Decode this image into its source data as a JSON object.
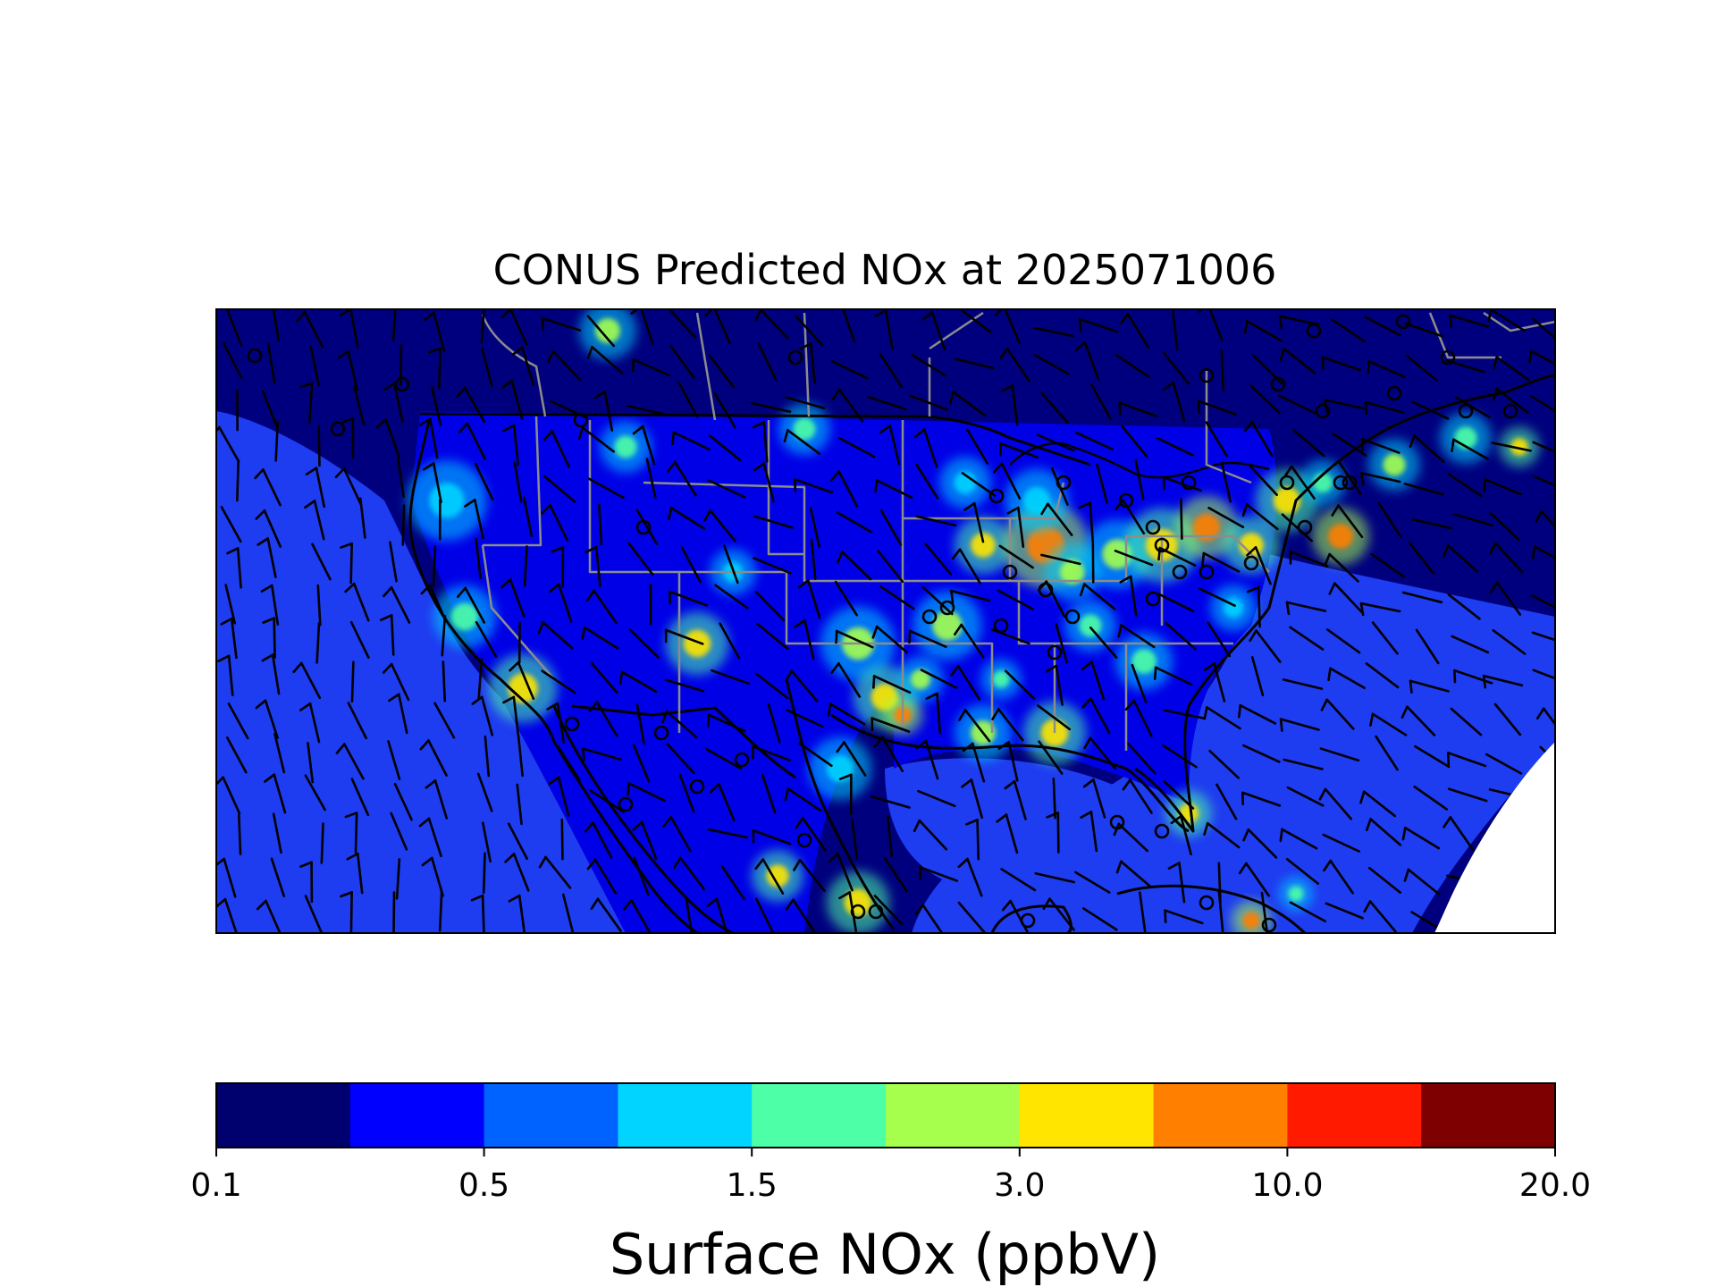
{
  "title": "CONUS Predicted NOx at 2025071006",
  "colorbar": {
    "label": "Surface NOx (ppbV)",
    "tick_labels": [
      "0.1",
      "0.5",
      "1.5",
      "3.0",
      "10.0",
      "20.0"
    ],
    "colors": [
      "#00006f",
      "#0000ff",
      "#0062ff",
      "#00d4ff",
      "#4dffa6",
      "#a6ff4d",
      "#ffe500",
      "#ff7f00",
      "#ff1a00",
      "#7f0000"
    ]
  },
  "map": {
    "background_color": "#00007f",
    "field_color": "#0000e6",
    "ocean_color": "#1e3cf0",
    "land_boundary_color": "#000000",
    "state_boundary_color": "#8c8c8c",
    "wind_symbol": "wind-barb-icon",
    "calm_symbol": "calm-circle-icon"
  }
}
